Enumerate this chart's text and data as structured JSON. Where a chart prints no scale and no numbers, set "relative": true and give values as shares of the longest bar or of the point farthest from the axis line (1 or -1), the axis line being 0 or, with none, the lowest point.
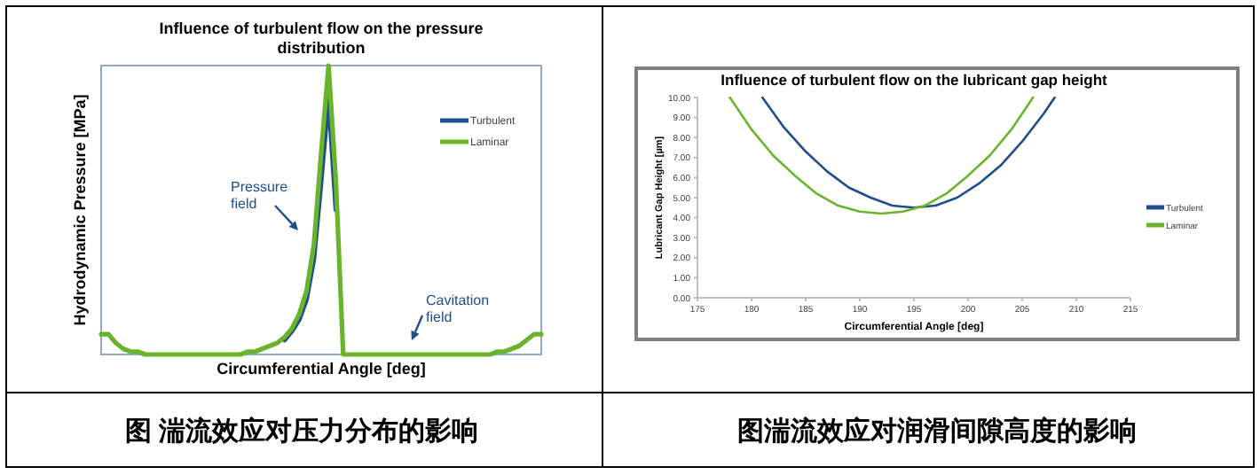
{
  "chart_data": [
    {
      "type": "line",
      "title": "Influence of turbulent flow on the pressure distribution",
      "xlabel": "Circumferential Angle [deg]",
      "ylabel": "Hydrodynamic Pressure [MPa]",
      "relative": true,
      "legend": "top right",
      "categories": [
        null,
        null,
        null,
        null,
        null,
        null,
        null,
        null,
        null,
        null,
        null,
        null,
        null,
        null,
        null,
        null,
        null,
        null,
        null,
        null,
        null,
        null,
        null,
        null,
        null,
        null,
        null,
        null,
        null,
        null,
        null,
        null,
        null,
        null,
        null,
        null,
        null,
        null,
        null,
        null,
        null,
        null,
        null,
        null,
        null,
        null,
        null,
        null,
        null,
        null,
        null,
        null,
        null,
        null,
        null,
        null,
        null,
        null,
        null,
        null,
        null
      ],
      "series": [
        {
          "name": "Turbulent",
          "color": "#1f4e8c",
          "values": [
            null,
            null,
            null,
            null,
            null,
            null,
            null,
            null,
            null,
            null,
            null,
            null,
            null,
            null,
            null,
            null,
            null,
            null,
            null,
            null,
            null,
            null,
            null,
            null,
            null,
            0.05,
            0.08,
            0.12,
            0.19,
            0.33,
            0.6,
            0.89,
            0.5,
            null,
            null,
            null,
            null,
            null,
            null,
            null,
            null,
            null,
            null,
            null,
            null,
            null,
            null,
            null,
            null,
            null,
            null,
            null,
            null,
            null,
            null,
            null,
            null,
            null,
            null,
            null,
            null
          ]
        },
        {
          "name": "Laminar",
          "color": "#6ab42d",
          "values": [
            0.07,
            0.07,
            0.04,
            0.02,
            0.01,
            0.01,
            0,
            0,
            0,
            0,
            0,
            0,
            0,
            0,
            0,
            0,
            0,
            0,
            0,
            0,
            0.01,
            0.01,
            0.02,
            0.03,
            0.04,
            0.06,
            0.09,
            0.14,
            0.22,
            0.38,
            0.7,
            1,
            0.6,
            0,
            0,
            0,
            0,
            0,
            0,
            0,
            0,
            0,
            0,
            0,
            0,
            0,
            0,
            0,
            0,
            0,
            0,
            0,
            0,
            0,
            0.01,
            0.01,
            0.02,
            0.03,
            0.05,
            0.07,
            0.07
          ]
        }
      ],
      "annotations": [
        "Pressure field",
        "Cavitation field",
        "图 湍流效应对压力分布的影响"
      ]
    },
    {
      "type": "line",
      "title": "Influence of turbulent flow on the lubricant gap height",
      "xlabel": "Circumferential Angle [deg]",
      "ylabel": "Lubricant Gap Height [µm]",
      "legend": "right",
      "xlim": [
        175,
        215
      ],
      "xticks": [
        175,
        180,
        185,
        190,
        195,
        200,
        205,
        210,
        215
      ],
      "ylim": [
        0,
        10
      ],
      "yticks": [
        {
          "value": 0,
          "label": "0.00"
        },
        {
          "value": 1,
          "label": "1.00"
        },
        {
          "value": 2,
          "label": "2.00"
        },
        {
          "value": 3,
          "label": "3.00"
        },
        {
          "value": 4,
          "label": "4.00"
        },
        {
          "value": 5,
          "label": "5.00"
        },
        {
          "value": 6,
          "label": "6.00"
        },
        {
          "value": 7,
          "label": "7.00"
        },
        {
          "value": 8,
          "label": "8.00"
        },
        {
          "value": 9,
          "label": "9.00"
        },
        {
          "value": 10,
          "label": "10.00"
        }
      ],
      "series": [
        {
          "name": "Turbulent",
          "color": "#1f4e8c",
          "x": [
            181,
            183,
            185,
            187,
            189,
            191,
            193,
            195,
            197,
            199,
            201,
            203,
            205,
            207,
            208
          ],
          "values": [
            10,
            8.5,
            7.3,
            6.3,
            5.5,
            5,
            4.6,
            4.5,
            4.6,
            5,
            5.7,
            6.6,
            7.8,
            9.2,
            10
          ]
        },
        {
          "name": "Laminar",
          "color": "#6ab42d",
          "x": [
            178,
            180,
            182,
            184,
            186,
            188,
            190,
            192,
            194,
            196,
            198,
            200,
            202,
            204,
            206
          ],
          "values": [
            10,
            8.4,
            7.1,
            6.1,
            5.2,
            4.6,
            4.3,
            4.2,
            4.3,
            4.6,
            5.2,
            6.1,
            7.1,
            8.4,
            10
          ]
        }
      ],
      "annotations": [
        "图湍流效应对润滑间隙高度的影响"
      ]
    }
  ]
}
